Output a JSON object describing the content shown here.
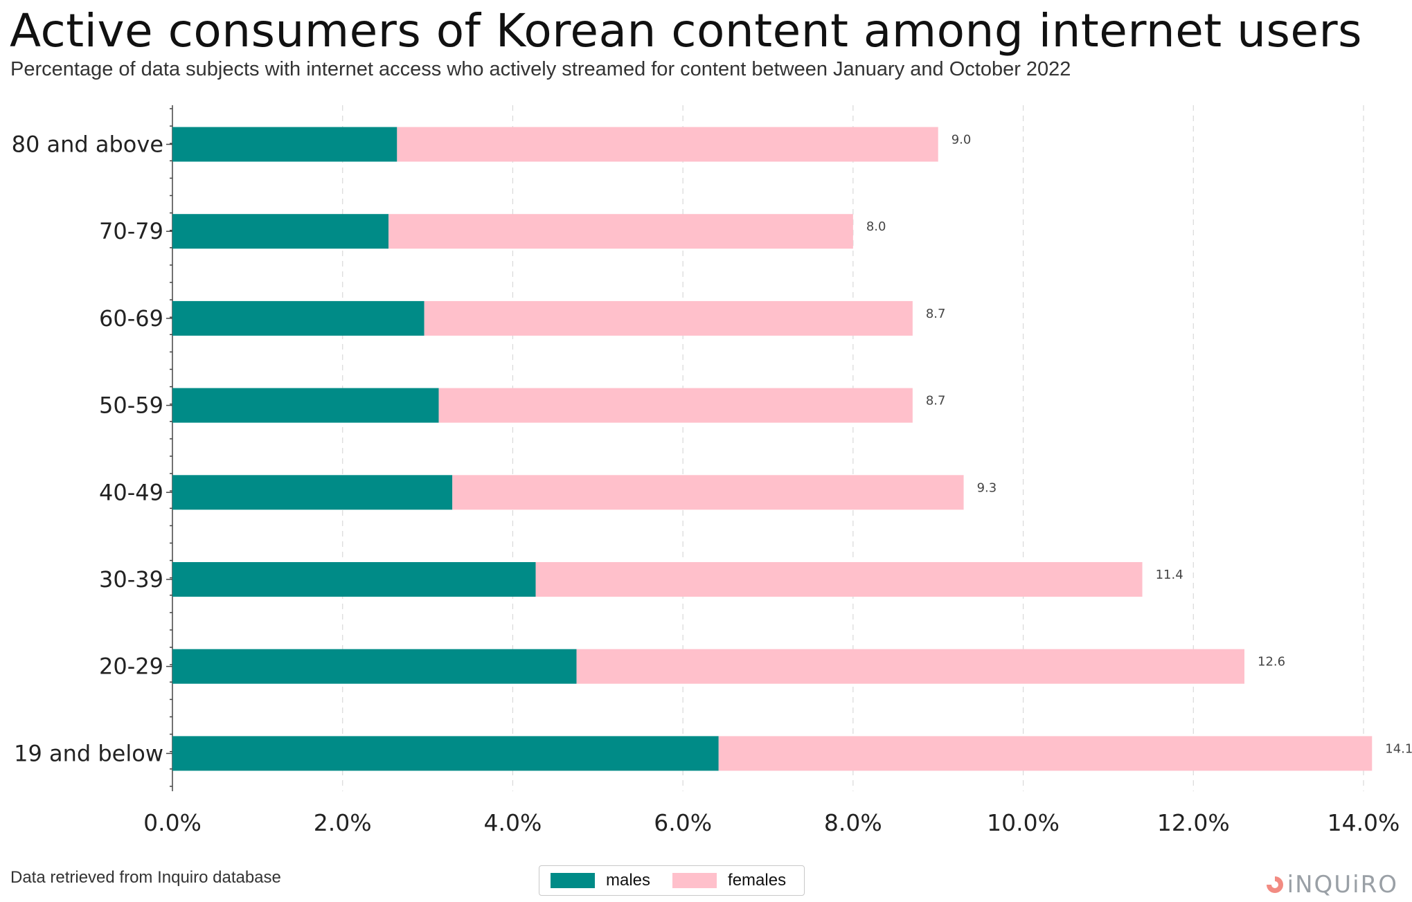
{
  "title": "Active consumers of Korean content among internet users",
  "subtitle": "Percentage of data subjects with internet access who actively streamed for content between January and October 2022",
  "footer": "Data retrieved from Inquiro database",
  "logo": "iNQUiRO",
  "colors": {
    "males": "#008b87",
    "females": "#ffc0cb",
    "grid": "#d9d9d9"
  },
  "legend": {
    "males": "males",
    "females": "females"
  },
  "chart_data": {
    "type": "bar",
    "orientation": "horizontal",
    "stacked": true,
    "categories": [
      "80 and above",
      "70-79",
      "60-69",
      "50-59",
      "40-49",
      "30-39",
      "20-29",
      "19 and below"
    ],
    "series": [
      {
        "name": "males",
        "values": [
          2.64,
          2.54,
          2.96,
          3.13,
          3.29,
          4.27,
          4.75,
          6.42
        ]
      },
      {
        "name": "females",
        "values": [
          6.36,
          5.46,
          5.74,
          5.57,
          6.01,
          7.13,
          7.85,
          7.68
        ]
      }
    ],
    "totals": [
      "9.0",
      "8.0",
      "8.7",
      "8.7",
      "9.3",
      "11.4",
      "12.6",
      "14.1"
    ],
    "x_ticks": [
      "0.0%",
      "2.0%",
      "4.0%",
      "6.0%",
      "8.0%",
      "10.0%",
      "12.0%",
      "14.0%"
    ],
    "xlim": [
      0,
      14.0
    ],
    "grid": "vertical dashed",
    "legend_position": "bottom-center"
  }
}
